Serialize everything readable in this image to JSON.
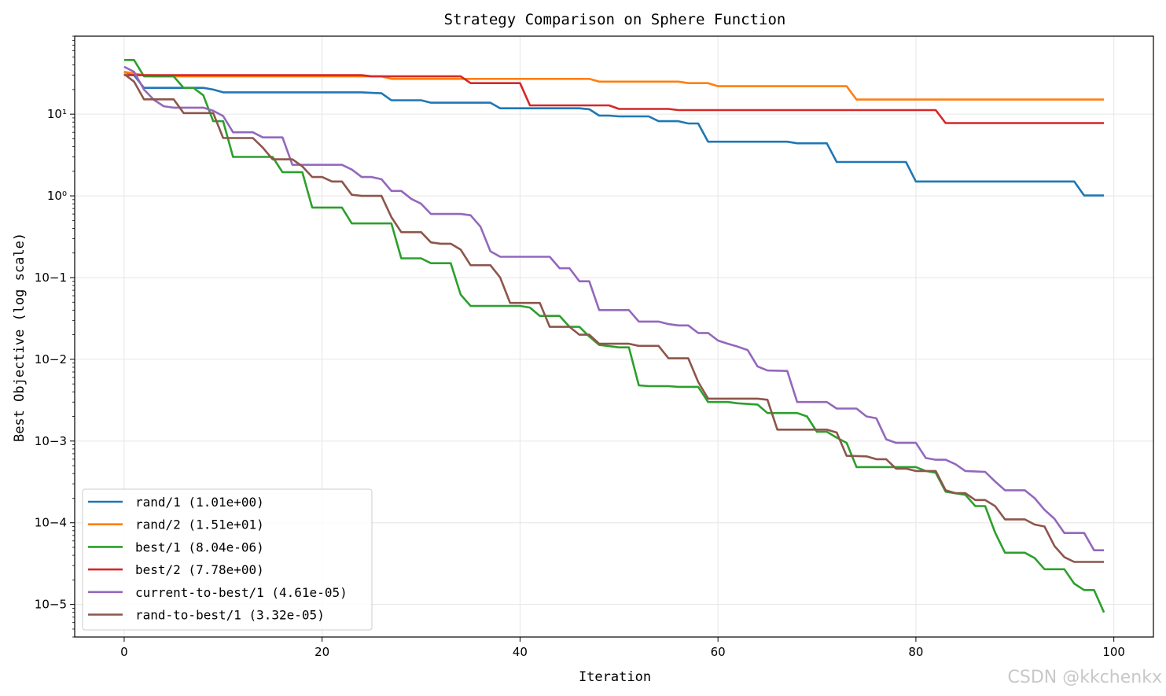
{
  "chart_data": {
    "type": "line",
    "title": "Strategy Comparison on Sphere Function",
    "xlabel": "Iteration",
    "ylabel": "Best Objective (log scale)",
    "yscale": "log",
    "xlim": [
      -5,
      104
    ],
    "ylim": [
      4e-06,
      90
    ],
    "grid": true,
    "legend_position": "lower-left",
    "x_ticks": [
      0,
      20,
      40,
      60,
      80,
      100
    ],
    "x_tick_labels": [
      "0",
      "20",
      "40",
      "60",
      "80",
      "100"
    ],
    "y_ticks": [
      10,
      1,
      0.1,
      0.01,
      0.001,
      0.0001,
      1e-05
    ],
    "y_tick_labels": [
      "10¹",
      "10⁰",
      "10−1",
      "10−2",
      "10−3",
      "10−4",
      "10−5"
    ],
    "series": [
      {
        "name": "rand/1 (1.01e+00)",
        "color": "#1f77b4",
        "points": [
          [
            0,
            33
          ],
          [
            1,
            30
          ],
          [
            2,
            21
          ],
          [
            8,
            21
          ],
          [
            9,
            20
          ],
          [
            10,
            18.5
          ],
          [
            24,
            18.5
          ],
          [
            25,
            18.2
          ],
          [
            26,
            18
          ],
          [
            27,
            14.8
          ],
          [
            30,
            14.8
          ],
          [
            31,
            13.8
          ],
          [
            37,
            13.8
          ],
          [
            38,
            11.8
          ],
          [
            46,
            11.8
          ],
          [
            47,
            11.5
          ],
          [
            48,
            9.6
          ],
          [
            49,
            9.6
          ],
          [
            50,
            9.4
          ],
          [
            53,
            9.4
          ],
          [
            54,
            8.2
          ],
          [
            56,
            8.2
          ],
          [
            57,
            7.7
          ],
          [
            58,
            7.7
          ],
          [
            59,
            4.6
          ],
          [
            67,
            4.6
          ],
          [
            68,
            4.4
          ],
          [
            71,
            4.4
          ],
          [
            72,
            2.6
          ],
          [
            79,
            2.6
          ],
          [
            80,
            1.5
          ],
          [
            96,
            1.5
          ],
          [
            97,
            1.01
          ],
          [
            99,
            1.01
          ]
        ]
      },
      {
        "name": "rand/2 (1.51e+01)",
        "color": "#ff7f0e",
        "points": [
          [
            0,
            33
          ],
          [
            2,
            30
          ],
          [
            3,
            29
          ],
          [
            26,
            29
          ],
          [
            27,
            27
          ],
          [
            47,
            27
          ],
          [
            48,
            25
          ],
          [
            56,
            25
          ],
          [
            57,
            24
          ],
          [
            59,
            24
          ],
          [
            60,
            22
          ],
          [
            73,
            22
          ],
          [
            74,
            15.1
          ],
          [
            99,
            15.1
          ]
        ]
      },
      {
        "name": "best/1 (8.04e-06)",
        "color": "#2ca02c",
        "points": [
          [
            0,
            46
          ],
          [
            1,
            46
          ],
          [
            2,
            29
          ],
          [
            5,
            29
          ],
          [
            6,
            21
          ],
          [
            7,
            21
          ],
          [
            8,
            17
          ],
          [
            9,
            8.2
          ],
          [
            10,
            8.2
          ],
          [
            11,
            3
          ],
          [
            15,
            3
          ],
          [
            16,
            1.95
          ],
          [
            18,
            1.95
          ],
          [
            19,
            0.72
          ],
          [
            22,
            0.72
          ],
          [
            23,
            0.46
          ],
          [
            27,
            0.46
          ],
          [
            28,
            0.172
          ],
          [
            30,
            0.172
          ],
          [
            31,
            0.15
          ],
          [
            33,
            0.15
          ],
          [
            34,
            0.062
          ],
          [
            35,
            0.045
          ],
          [
            40,
            0.045
          ],
          [
            41,
            0.043
          ],
          [
            42,
            0.034
          ],
          [
            44,
            0.034
          ],
          [
            45,
            0.025
          ],
          [
            46,
            0.025
          ],
          [
            47,
            0.019
          ],
          [
            48,
            0.015
          ],
          [
            50,
            0.014
          ],
          [
            51,
            0.014
          ],
          [
            52,
            0.0048
          ],
          [
            53,
            0.0047
          ],
          [
            55,
            0.0047
          ],
          [
            56,
            0.0046
          ],
          [
            58,
            0.0046
          ],
          [
            59,
            0.003
          ],
          [
            61,
            0.003
          ],
          [
            62,
            0.0029
          ],
          [
            64,
            0.0028
          ],
          [
            65,
            0.0022
          ],
          [
            68,
            0.0022
          ],
          [
            69,
            0.002
          ],
          [
            70,
            0.0013
          ],
          [
            71,
            0.0013
          ],
          [
            72,
            0.0011
          ],
          [
            73,
            0.00095
          ],
          [
            74,
            0.00048
          ],
          [
            80,
            0.00048
          ],
          [
            81,
            0.00043
          ],
          [
            82,
            0.00041
          ],
          [
            83,
            0.00024
          ],
          [
            85,
            0.00022
          ],
          [
            86,
            0.00016
          ],
          [
            87,
            0.00016
          ],
          [
            88,
            7.6e-05
          ],
          [
            89,
            4.3e-05
          ],
          [
            91,
            4.3e-05
          ],
          [
            92,
            3.7e-05
          ],
          [
            93,
            2.7e-05
          ],
          [
            95,
            2.7e-05
          ],
          [
            96,
            1.8e-05
          ],
          [
            97,
            1.5e-05
          ],
          [
            98,
            1.5e-05
          ],
          [
            99,
            8e-06
          ]
        ]
      },
      {
        "name": "best/2 (7.78e+00)",
        "color": "#d62728",
        "points": [
          [
            0,
            30
          ],
          [
            1,
            30
          ],
          [
            24,
            30
          ],
          [
            25,
            29
          ],
          [
            34,
            29
          ],
          [
            35,
            24
          ],
          [
            40,
            24
          ],
          [
            41,
            12.8
          ],
          [
            47,
            12.8
          ],
          [
            49,
            12.8
          ],
          [
            50,
            11.6
          ],
          [
            55,
            11.6
          ],
          [
            56,
            11.2
          ],
          [
            82,
            11.2
          ],
          [
            83,
            7.78
          ],
          [
            99,
            7.78
          ]
        ]
      },
      {
        "name": "current-to-best/1 (4.61e-05)",
        "color": "#9467bd",
        "points": [
          [
            0,
            38
          ],
          [
            1,
            33
          ],
          [
            2,
            20
          ],
          [
            3,
            15
          ],
          [
            4,
            12.5
          ],
          [
            5,
            12
          ],
          [
            8,
            12
          ],
          [
            9,
            11
          ],
          [
            10,
            9.5
          ],
          [
            11,
            6
          ],
          [
            13,
            6
          ],
          [
            14,
            5.2
          ],
          [
            16,
            5.2
          ],
          [
            17,
            2.4
          ],
          [
            22,
            2.4
          ],
          [
            23,
            2.1
          ],
          [
            24,
            1.7
          ],
          [
            25,
            1.7
          ],
          [
            26,
            1.6
          ],
          [
            27,
            1.15
          ],
          [
            28,
            1.15
          ],
          [
            29,
            0.92
          ],
          [
            30,
            0.8
          ],
          [
            31,
            0.6
          ],
          [
            34,
            0.6
          ],
          [
            35,
            0.58
          ],
          [
            36,
            0.42
          ],
          [
            37,
            0.21
          ],
          [
            38,
            0.18
          ],
          [
            43,
            0.18
          ],
          [
            44,
            0.13
          ],
          [
            45,
            0.13
          ],
          [
            46,
            0.09
          ],
          [
            47,
            0.09
          ],
          [
            48,
            0.04
          ],
          [
            51,
            0.04
          ],
          [
            52,
            0.029
          ],
          [
            54,
            0.029
          ],
          [
            55,
            0.027
          ],
          [
            56,
            0.026
          ],
          [
            57,
            0.026
          ],
          [
            58,
            0.021
          ],
          [
            59,
            0.021
          ],
          [
            60,
            0.017
          ],
          [
            61,
            0.0155
          ],
          [
            62,
            0.0143
          ],
          [
            63,
            0.013
          ],
          [
            64,
            0.0082
          ],
          [
            65,
            0.0073
          ],
          [
            67,
            0.0072
          ],
          [
            68,
            0.003
          ],
          [
            71,
            0.003
          ],
          [
            72,
            0.0025
          ],
          [
            74,
            0.0025
          ],
          [
            75,
            0.002
          ],
          [
            76,
            0.0019
          ],
          [
            77,
            0.00105
          ],
          [
            78,
            0.00095
          ],
          [
            80,
            0.00095
          ],
          [
            81,
            0.00062
          ],
          [
            82,
            0.00059
          ],
          [
            83,
            0.00059
          ],
          [
            84,
            0.00052
          ],
          [
            85,
            0.00043
          ],
          [
            87,
            0.00042
          ],
          [
            88,
            0.00032
          ],
          [
            89,
            0.00025
          ],
          [
            91,
            0.00025
          ],
          [
            92,
            0.0002
          ],
          [
            93,
            0.000144
          ],
          [
            94,
            0.000112
          ],
          [
            95,
            7.5e-05
          ],
          [
            97,
            7.5e-05
          ],
          [
            98,
            4.61e-05
          ],
          [
            99,
            4.61e-05
          ]
        ]
      },
      {
        "name": "rand-to-best/1 (3.32e-05)",
        "color": "#8c564b",
        "points": [
          [
            0,
            31
          ],
          [
            1,
            25
          ],
          [
            2,
            15.2
          ],
          [
            5,
            15.2
          ],
          [
            6,
            10.3
          ],
          [
            9,
            10.3
          ],
          [
            10,
            5.1
          ],
          [
            13,
            5.1
          ],
          [
            14,
            3.9
          ],
          [
            15,
            2.8
          ],
          [
            17,
            2.8
          ],
          [
            18,
            2.3
          ],
          [
            19,
            1.7
          ],
          [
            20,
            1.7
          ],
          [
            21,
            1.5
          ],
          [
            22,
            1.5
          ],
          [
            23,
            1.03
          ],
          [
            24,
            1
          ],
          [
            26,
            1
          ],
          [
            27,
            0.55
          ],
          [
            28,
            0.36
          ],
          [
            30,
            0.36
          ],
          [
            31,
            0.27
          ],
          [
            32,
            0.26
          ],
          [
            33,
            0.26
          ],
          [
            34,
            0.22
          ],
          [
            35,
            0.142
          ],
          [
            37,
            0.142
          ],
          [
            38,
            0.1
          ],
          [
            39,
            0.049
          ],
          [
            42,
            0.049
          ],
          [
            43,
            0.025
          ],
          [
            45,
            0.025
          ],
          [
            46,
            0.02
          ],
          [
            47,
            0.02
          ],
          [
            48,
            0.0155
          ],
          [
            51,
            0.0155
          ],
          [
            52,
            0.0146
          ],
          [
            54,
            0.0146
          ],
          [
            55,
            0.0103
          ],
          [
            57,
            0.0103
          ],
          [
            58,
            0.0053
          ],
          [
            59,
            0.0033
          ],
          [
            64,
            0.0033
          ],
          [
            65,
            0.0032
          ],
          [
            66,
            0.00138
          ],
          [
            70,
            0.00138
          ],
          [
            71,
            0.00138
          ],
          [
            72,
            0.00127
          ],
          [
            73,
            0.00066
          ],
          [
            75,
            0.00065
          ],
          [
            76,
            0.0006
          ],
          [
            77,
            0.0006
          ],
          [
            78,
            0.00046
          ],
          [
            79,
            0.00046
          ],
          [
            80,
            0.00043
          ],
          [
            81,
            0.00043
          ],
          [
            82,
            0.00043
          ],
          [
            83,
            0.00025
          ],
          [
            84,
            0.00023
          ],
          [
            85,
            0.00023
          ],
          [
            86,
            0.00019
          ],
          [
            87,
            0.00019
          ],
          [
            88,
            0.00016
          ],
          [
            89,
            0.00011
          ],
          [
            91,
            0.00011
          ],
          [
            92,
            9.5e-05
          ],
          [
            93,
            9e-05
          ],
          [
            94,
            5.2e-05
          ],
          [
            95,
            3.8e-05
          ],
          [
            96,
            3.32e-05
          ],
          [
            99,
            3.32e-05
          ]
        ]
      }
    ]
  },
  "watermark": "CSDN @kkchenkx"
}
